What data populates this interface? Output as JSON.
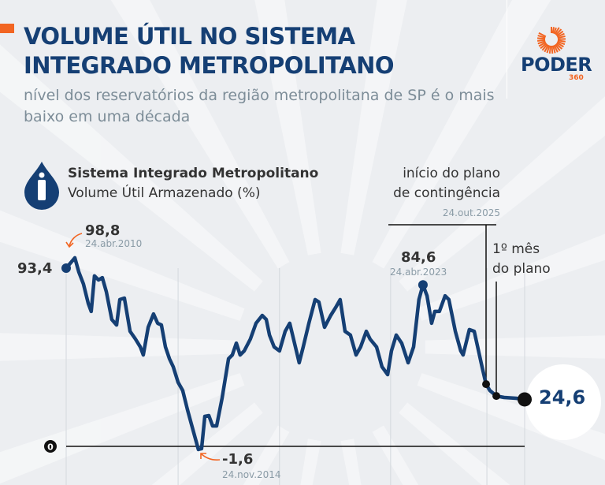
{
  "header": {
    "title": "VOLUME ÚTIL NO SISTEMA INTEGRADO METROPOLITANO",
    "subtitle": "nível dos reservatórios da região metropolitana de SP é o mais baixo em uma década",
    "logo": {
      "name": "PODER",
      "suffix": "360"
    }
  },
  "colors": {
    "line": "#153f74",
    "accent": "#f26522",
    "background": "#eceef1"
  },
  "chart_data": {
    "type": "line",
    "title": "Sistema Integrado Metropolitano",
    "subtitle": "Volume Útil Armazenado (%)",
    "legend_icon": "water-drop-person-icon",
    "ylabel": "Volume Útil Armazenado (%)",
    "ylim": [
      -1.6,
      98.8
    ],
    "xlim": [
      2010,
      2027
    ],
    "zero_label": "0",
    "series": [
      {
        "name": "Volume Útil Armazenado (%)",
        "points": [
          [
            2010.0,
            93.4
          ],
          [
            2010.32,
            98.8
          ],
          [
            2010.47,
            91.3
          ],
          [
            2010.64,
            85.1
          ],
          [
            2010.82,
            74.8
          ],
          [
            2010.93,
            70.7
          ],
          [
            2011.05,
            89.3
          ],
          [
            2011.2,
            87.2
          ],
          [
            2011.34,
            88.4
          ],
          [
            2011.49,
            81.0
          ],
          [
            2011.69,
            66.5
          ],
          [
            2011.87,
            63.6
          ],
          [
            2011.99,
            76.9
          ],
          [
            2012.16,
            77.7
          ],
          [
            2012.37,
            60.3
          ],
          [
            2012.57,
            56.2
          ],
          [
            2012.75,
            52.1
          ],
          [
            2012.86,
            47.9
          ],
          [
            2013.04,
            62.4
          ],
          [
            2013.24,
            69.4
          ],
          [
            2013.39,
            64.5
          ],
          [
            2013.53,
            63.6
          ],
          [
            2013.68,
            52.1
          ],
          [
            2013.83,
            45.9
          ],
          [
            2013.97,
            41.7
          ],
          [
            2014.15,
            33.5
          ],
          [
            2014.32,
            29.3
          ],
          [
            2014.5,
            19.0
          ],
          [
            2014.7,
            8.7
          ],
          [
            2014.9,
            -1.6
          ],
          [
            2015.02,
            -1.2
          ],
          [
            2015.14,
            15.7
          ],
          [
            2015.29,
            16.1
          ],
          [
            2015.43,
            10.7
          ],
          [
            2015.58,
            10.7
          ],
          [
            2015.78,
            25.2
          ],
          [
            2016.02,
            45.9
          ],
          [
            2016.16,
            47.9
          ],
          [
            2016.31,
            54.1
          ],
          [
            2016.45,
            47.9
          ],
          [
            2016.6,
            50.0
          ],
          [
            2016.83,
            56.2
          ],
          [
            2017.04,
            64.5
          ],
          [
            2017.27,
            68.6
          ],
          [
            2017.42,
            66.5
          ],
          [
            2017.54,
            58.3
          ],
          [
            2017.71,
            52.1
          ],
          [
            2017.91,
            50.0
          ],
          [
            2018.12,
            60.3
          ],
          [
            2018.29,
            64.5
          ],
          [
            2018.5,
            52.1
          ],
          [
            2018.64,
            43.8
          ],
          [
            2018.79,
            52.1
          ],
          [
            2019.0,
            64.5
          ],
          [
            2019.23,
            76.9
          ],
          [
            2019.37,
            75.6
          ],
          [
            2019.58,
            62.4
          ],
          [
            2019.81,
            68.6
          ],
          [
            2019.99,
            72.7
          ],
          [
            2020.16,
            76.9
          ],
          [
            2020.34,
            60.3
          ],
          [
            2020.54,
            58.3
          ],
          [
            2020.75,
            47.9
          ],
          [
            2020.92,
            52.1
          ],
          [
            2021.13,
            60.3
          ],
          [
            2021.27,
            56.2
          ],
          [
            2021.51,
            52.1
          ],
          [
            2021.71,
            41.7
          ],
          [
            2021.92,
            37.6
          ],
          [
            2022.06,
            50.0
          ],
          [
            2022.24,
            58.3
          ],
          [
            2022.44,
            54.1
          ],
          [
            2022.68,
            43.8
          ],
          [
            2022.88,
            52.1
          ],
          [
            2023.08,
            76.9
          ],
          [
            2023.23,
            84.6
          ],
          [
            2023.38,
            78.9
          ],
          [
            2023.55,
            64.5
          ],
          [
            2023.67,
            70.7
          ],
          [
            2023.84,
            70.7
          ],
          [
            2024.05,
            78.9
          ],
          [
            2024.19,
            76.9
          ],
          [
            2024.43,
            60.3
          ],
          [
            2024.63,
            50.0
          ],
          [
            2024.72,
            47.9
          ],
          [
            2024.95,
            61.2
          ],
          [
            2025.13,
            60.3
          ],
          [
            2025.42,
            41.7
          ],
          [
            2025.57,
            32.6
          ],
          [
            2025.71,
            29.3
          ],
          [
            2025.95,
            26.4
          ],
          [
            2026.24,
            25.6
          ],
          [
            2026.68,
            25.2
          ],
          [
            2027.0,
            24.6
          ]
        ]
      }
    ],
    "annotations": {
      "start": {
        "value": "93,4"
      },
      "max": {
        "value": "98,8",
        "date": "24.abr.2010"
      },
      "min": {
        "value": "-1,6",
        "date": "24.nov.2014"
      },
      "peak2023": {
        "value": "84,6",
        "date": "24.abr.2023"
      },
      "plan_start": {
        "text1": "início do plano",
        "text2": "de contingência",
        "date": "24.out.2025"
      },
      "plan_month": {
        "text1": "1º mês",
        "text2": "do plano"
      },
      "end": {
        "value": "24,6"
      }
    }
  }
}
